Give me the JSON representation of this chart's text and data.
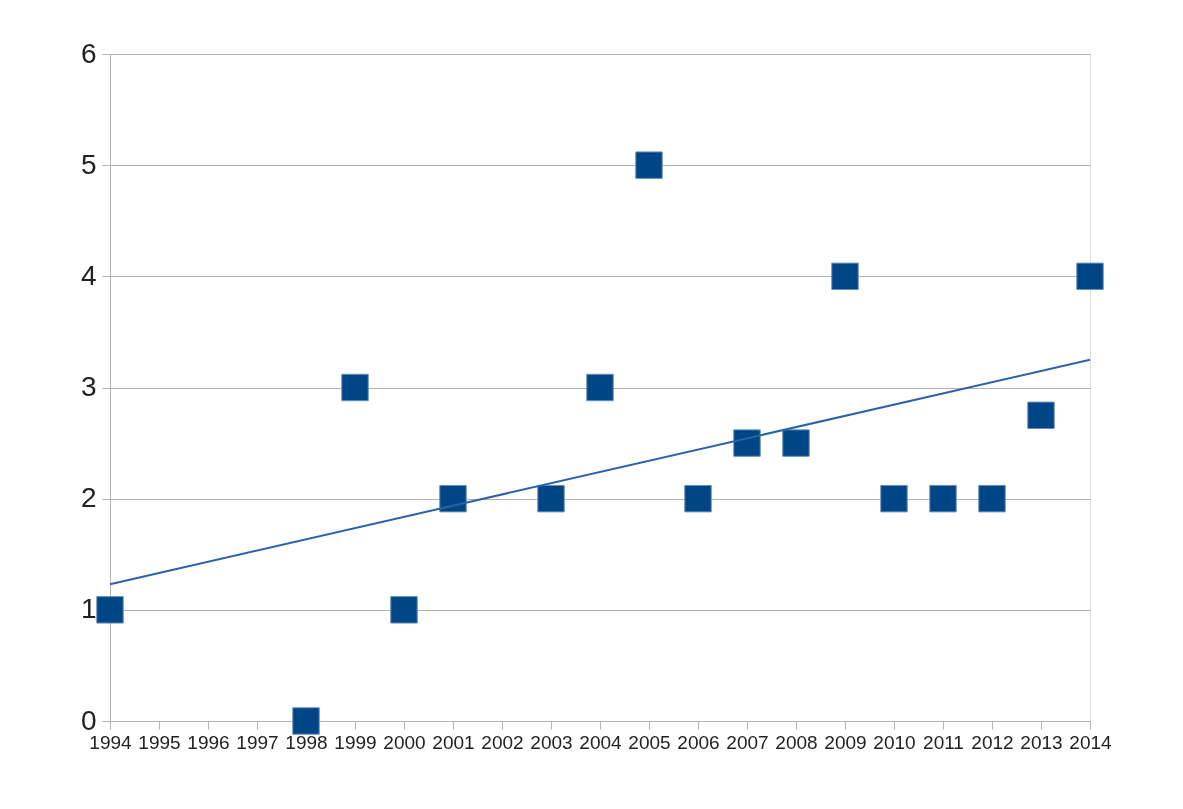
{
  "chart_data": {
    "type": "scatter",
    "marker": "square",
    "grid": "y",
    "xlim": [
      1994,
      2014
    ],
    "xticks": [
      1994,
      1995,
      1996,
      1997,
      1998,
      1999,
      2000,
      2001,
      2002,
      2003,
      2004,
      2005,
      2006,
      2007,
      2008,
      2009,
      2010,
      2011,
      2012,
      2013,
      2014
    ],
    "ylim": [
      0,
      6
    ],
    "yticks": [
      0,
      1,
      2,
      3,
      4,
      5,
      6
    ],
    "series": [
      {
        "color": "#004586",
        "x": [
          1994,
          1998,
          1999,
          2000,
          2001,
          2003,
          2004,
          2005,
          2006,
          2007,
          2008,
          2009,
          2010,
          2011,
          2012,
          2013,
          2014
        ],
        "values": [
          1,
          0,
          3,
          1,
          2,
          2,
          3,
          5,
          2,
          2.5,
          2.5,
          4,
          2,
          2,
          2,
          2.75,
          4
        ]
      },
      {
        "type": "line",
        "marker": "none",
        "color": "#2a62a8",
        "x": [
          1994,
          2014
        ],
        "values": [
          1.23,
          3.25
        ]
      }
    ]
  }
}
